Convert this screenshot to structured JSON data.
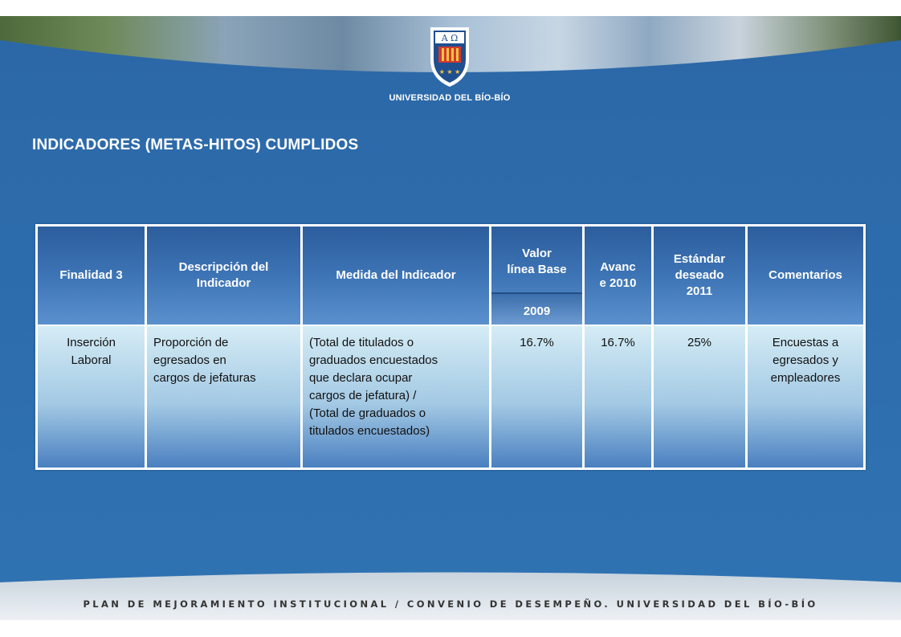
{
  "header": {
    "university_name": "UNIVERSIDAD DEL BÍO-BÍO",
    "logo_letters": "A Ω"
  },
  "slide": {
    "title": "INDICADORES (METAS-HITOS) CUMPLIDOS"
  },
  "table": {
    "headers": {
      "finalidad": "Finalidad 3",
      "descripcion_line1": "Descripción del",
      "descripcion_line2": "Indicador",
      "medida": "Medida del Indicador",
      "valor_line1": "Valor",
      "valor_line2": "línea Base",
      "valor_year": "2009",
      "avance_line1": "Avanc",
      "avance_line2": "e 2010",
      "estandar_line1": "Estándar",
      "estandar_line2": "deseado",
      "estandar_line3": "2011",
      "comentarios": "Comentarios"
    },
    "row": {
      "finalidad_line1": "Inserción",
      "finalidad_line2": "Laboral",
      "descripcion_line1": "Proporción de",
      "descripcion_line2": "egresados en",
      "descripcion_line3": "cargos de jefaturas",
      "medida_line1": "(Total de titulados o",
      "medida_line2": "graduados encuestados",
      "medida_line3": "que declara ocupar",
      "medida_line4": "cargos de jefatura) /",
      "medida_line5": "(Total de graduados o",
      "medida_line6": "titulados encuestados)",
      "valor": "16.7%",
      "avance": "16.7%",
      "estandar": "25%",
      "comentarios_line1": "Encuestas a",
      "comentarios_line2": "egresados y",
      "comentarios_line3": "empleadores"
    }
  },
  "footer": {
    "text": "PLAN DE MEJORAMIENTO INSTITUCIONAL / CONVENIO DE DESEMPEÑO. UNIVERSIDAD DEL BÍO-BÍO"
  },
  "colors": {
    "slide_blue": "#2f6fae",
    "header_blue": "#3d74b5",
    "row_light": "#d5ecf5"
  }
}
